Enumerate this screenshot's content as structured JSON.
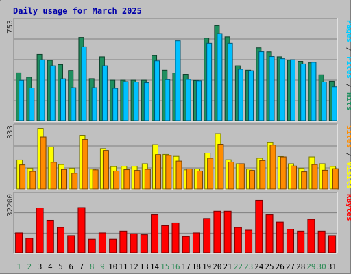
{
  "chart_data": {
    "type": "bar",
    "title": "Daily usage for March 2025",
    "categories": [
      "1",
      "2",
      "3",
      "4",
      "5",
      "6",
      "7",
      "8",
      "9",
      "10",
      "11",
      "12",
      "13",
      "14",
      "15",
      "16",
      "17",
      "18",
      "19",
      "20",
      "21",
      "22",
      "23",
      "24",
      "25",
      "26",
      "27",
      "28",
      "29",
      "30",
      "31"
    ],
    "weekend_days": [
      "1",
      "2",
      "8",
      "9",
      "15",
      "16",
      "22",
      "23",
      "29",
      "30"
    ],
    "panels": [
      {
        "id": "pages-files-hits",
        "ymax_label": "753",
        "ymax": 753,
        "axis_legend": [
          {
            "text": "Pages",
            "color": "#00ccff"
          },
          {
            "text": " / ",
            "color": "#333333"
          },
          {
            "text": "Files",
            "color": "#00ccff"
          },
          {
            "text": " / ",
            "color": "#333333"
          },
          {
            "text": "Hits",
            "color": "#1f8f5f"
          }
        ],
        "series": [
          {
            "name": "Hits",
            "color": "#1f8f5f",
            "values": [
              359,
              326,
              498,
              454,
              421,
              378,
              626,
              315,
              480,
              304,
              304,
              304,
              304,
              489,
              380,
              358,
              348,
              302,
              620,
              715,
              630,
              412,
              380,
              548,
              517,
              480,
              455,
              446,
              435,
              344,
              297
            ]
          },
          {
            "name": "Files",
            "color": "#00c0ff",
            "values": [
              303,
              245,
              458,
              412,
              314,
              247,
              555,
              247,
              412,
              242,
              294,
              291,
              286,
              450,
              308,
              600,
              310,
              300,
              581,
              655,
              581,
              387,
              376,
              518,
              482,
              466,
              459,
              426,
              439,
              292,
              254
            ]
          },
          {
            "name": "Pages",
            "color": "#00e0ff",
            "values": [
              85,
              70,
              120,
              110,
              90,
              75,
              150,
              70,
              115,
              68,
              80,
              78,
              76,
              118,
              82,
              160,
              84,
              82,
              155,
              175,
              156,
              105,
              100,
              140,
              130,
              126,
              124,
              115,
              118,
              79,
              69
            ]
          }
        ]
      },
      {
        "id": "visits-sites",
        "ymax_label": "333",
        "ymax": 333,
        "axis_legend": [
          {
            "text": "Sites",
            "color": "#ff8c00"
          },
          {
            "text": " / ",
            "color": "#333333"
          },
          {
            "text": "Visits",
            "color": "#ffff00"
          }
        ],
        "series": [
          {
            "name": "Visits",
            "color": "#ffff00",
            "values": [
              154,
              111,
              320,
              223,
              130,
              111,
              284,
              106,
              214,
              119,
              121,
              121,
              134,
              235,
              183,
              173,
              102,
              107,
              190,
              293,
              155,
              134,
              106,
              163,
              245,
              172,
              134,
              111,
              170,
              134,
              120
            ]
          },
          {
            "name": "Sites",
            "color": "#ff8c00",
            "values": [
              128,
              94,
              275,
              142,
              104,
              84,
              262,
              102,
              204,
              96,
              103,
              99,
              105,
              182,
              178,
              148,
              107,
              96,
              163,
              237,
              143,
              134,
              99,
              151,
              233,
              170,
              122,
              92,
              130,
              100,
              108
            ]
          }
        ]
      },
      {
        "id": "kbytes",
        "ymax_label": "32200",
        "ymax": 32200,
        "axis_legend": [
          {
            "text": "KBytes",
            "color": "#ff0000"
          }
        ],
        "series": [
          {
            "name": "KBytes",
            "color": "#ff0000",
            "values": [
              11000,
              8000,
              24800,
              18000,
              14000,
              9500,
              25000,
              7500,
              11000,
              7500,
              12000,
              10500,
              10000,
              21000,
              15000,
              16500,
              9000,
              11000,
              19000,
              23000,
              23000,
              14000,
              12500,
              29000,
              21000,
              17000,
              13000,
              12000,
              18500,
              12000,
              9500
            ]
          }
        ]
      }
    ],
    "grid": true,
    "ylim": [
      0,
      753
    ]
  }
}
